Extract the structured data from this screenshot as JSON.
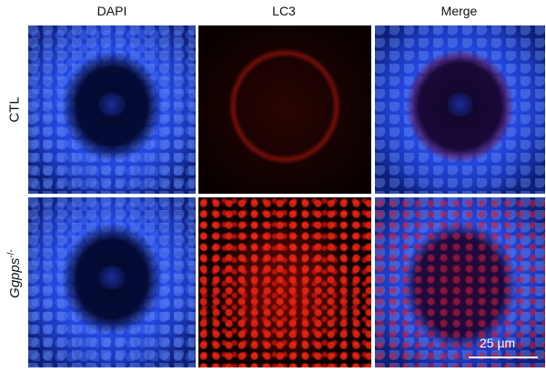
{
  "figure": {
    "columns": [
      {
        "label": "DAPI"
      },
      {
        "label": "LC3"
      },
      {
        "label": "Merge"
      }
    ],
    "rows": [
      {
        "label": "CTL",
        "superscript": ""
      },
      {
        "label": "Ggpps",
        "superscript": "-/-"
      }
    ],
    "scale_bar": {
      "label": "25 µm"
    },
    "colors": {
      "dapi": "#2448e0",
      "lc3": "#e01a0a",
      "background": "#ffffff"
    }
  }
}
